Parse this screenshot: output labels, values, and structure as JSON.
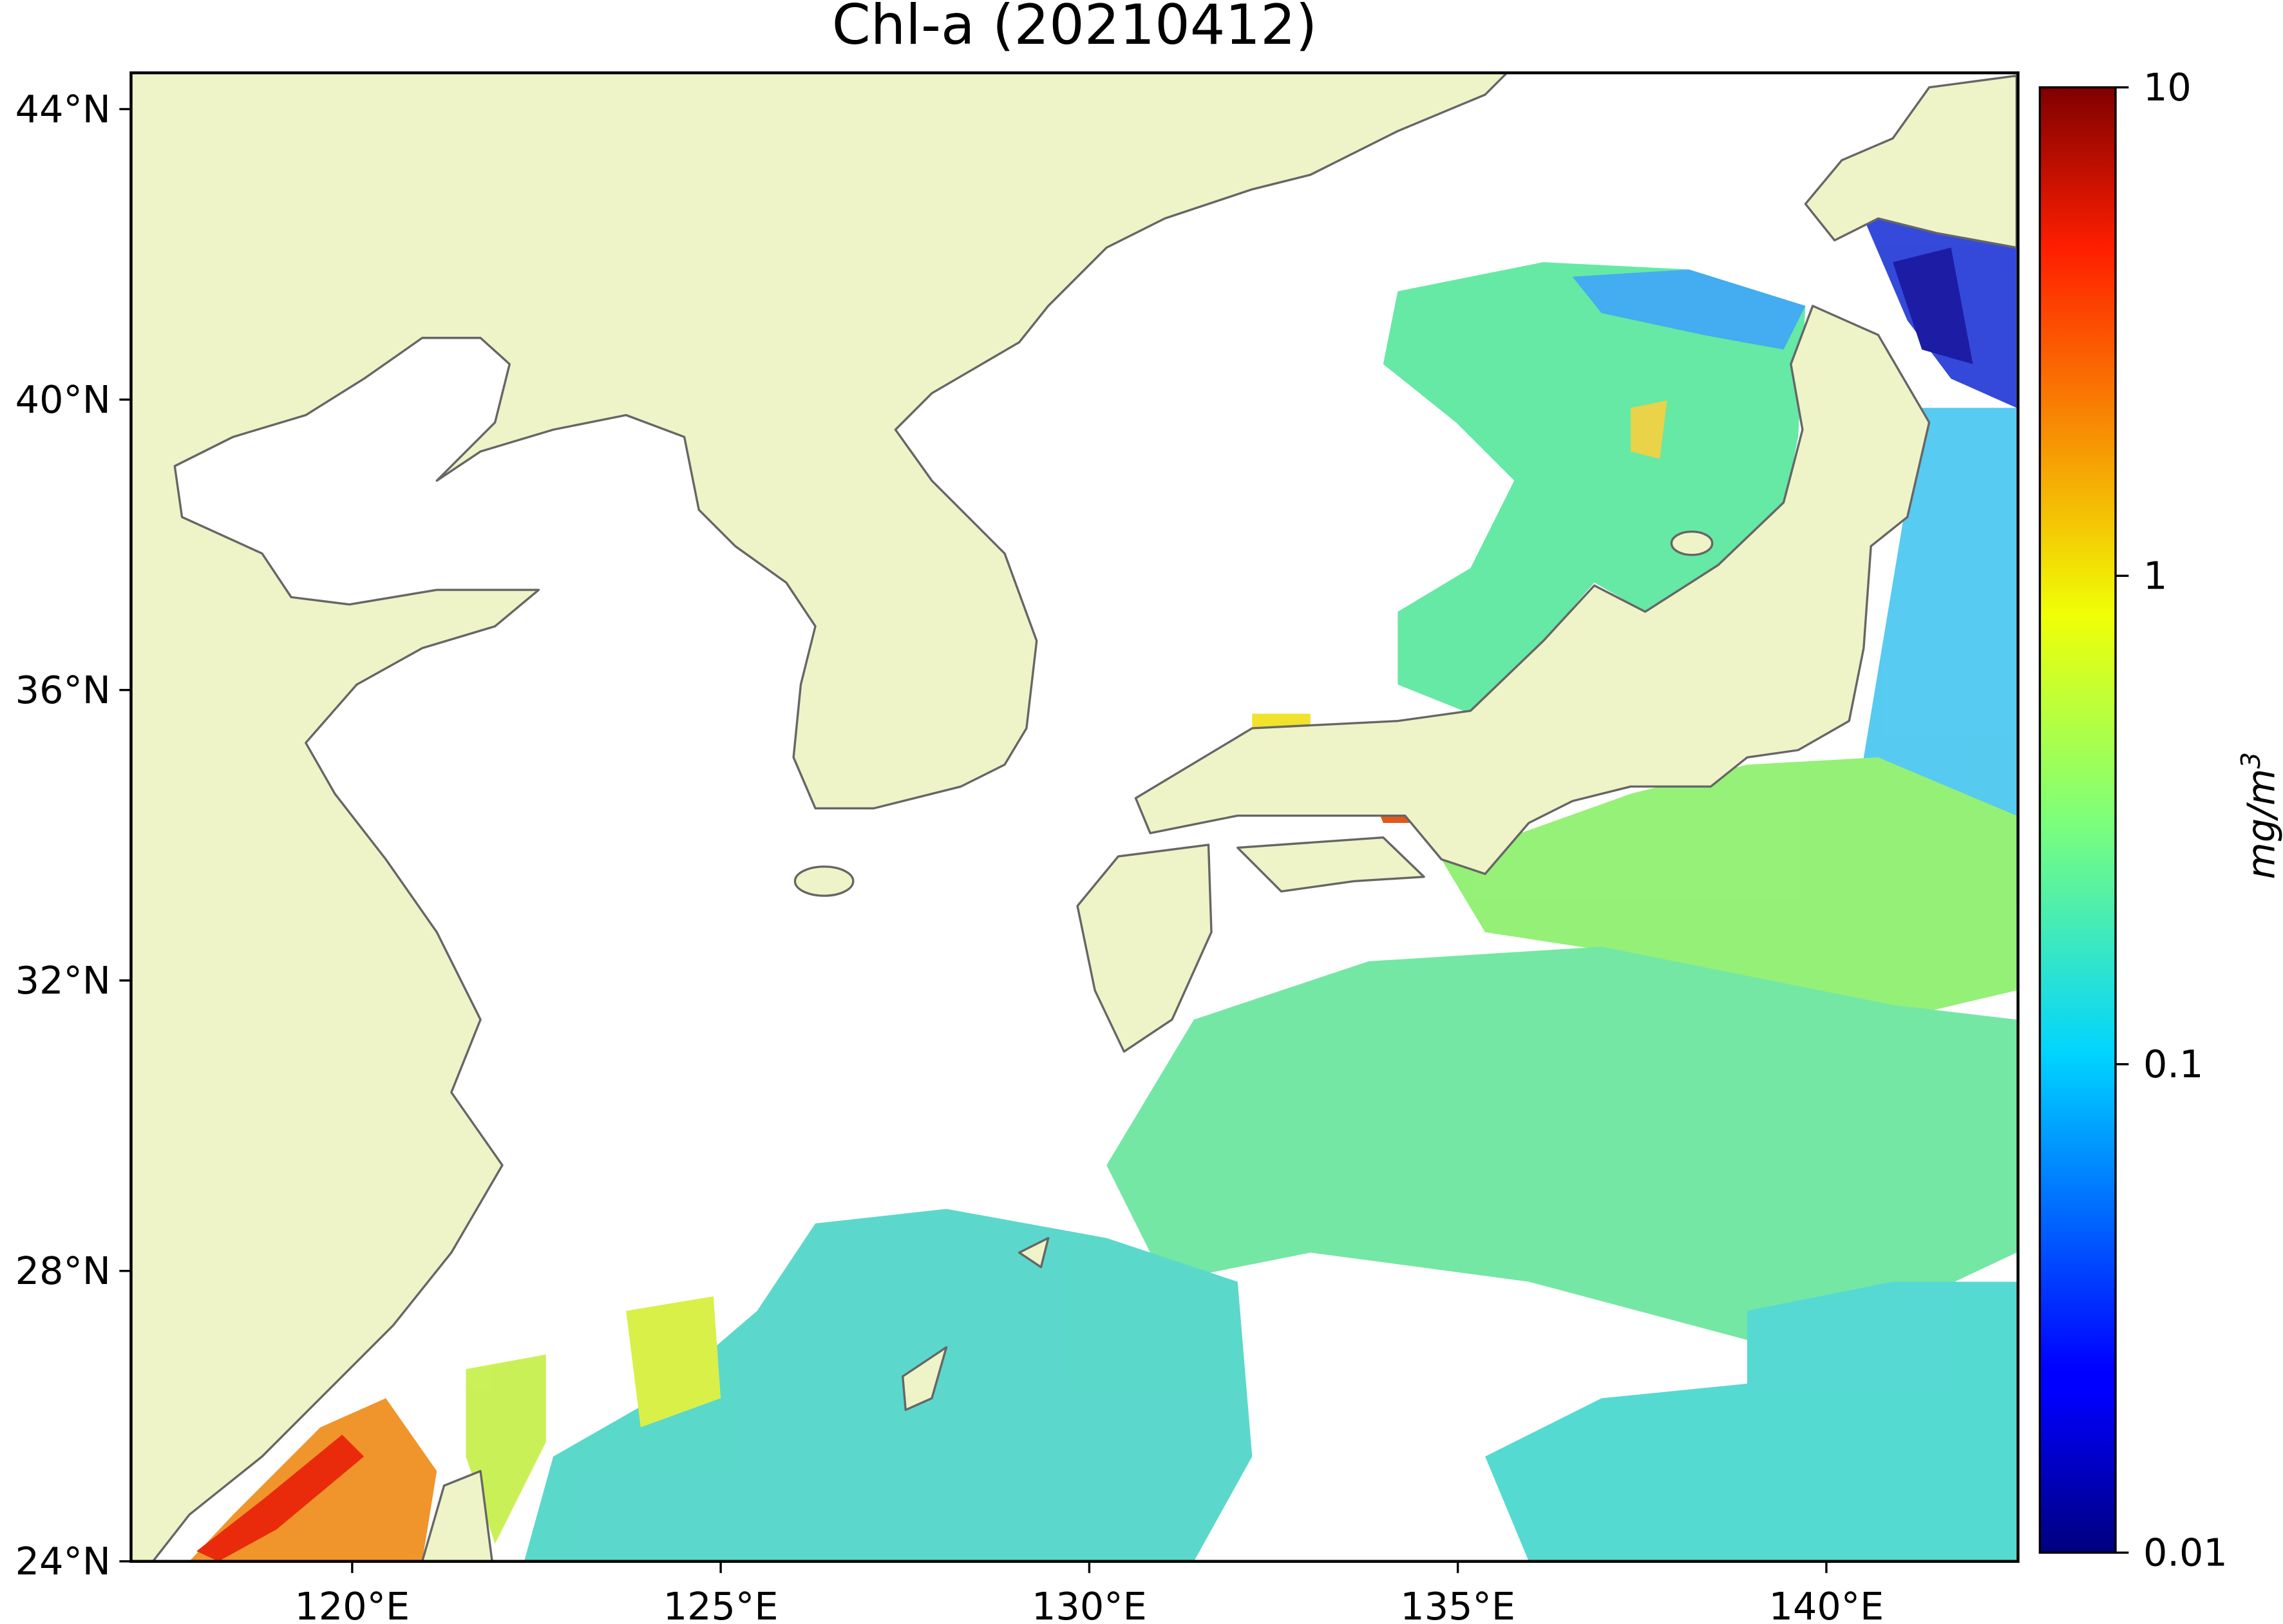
{
  "chart_data": {
    "type": "map",
    "title": "Chl-a (20210412)",
    "xlim": [
      117,
      142.6
    ],
    "ylim": [
      24,
      44.5
    ],
    "xticks": [
      {
        "value": 120,
        "label": "120°E"
      },
      {
        "value": 125,
        "label": "125°E"
      },
      {
        "value": 130,
        "label": "130°E"
      },
      {
        "value": 135,
        "label": "135°E"
      },
      {
        "value": 140,
        "label": "140°E"
      }
    ],
    "yticks": [
      {
        "value": 24,
        "label": "24°N"
      },
      {
        "value": 28,
        "label": "28°N"
      },
      {
        "value": 32,
        "label": "32°N"
      },
      {
        "value": 36,
        "label": "36°N"
      },
      {
        "value": 40,
        "label": "40°N"
      },
      {
        "value": 44,
        "label": "44°N"
      }
    ],
    "colorbar": {
      "lim": [
        0.01,
        10
      ],
      "log": true,
      "colormap": "jet",
      "ticks": [
        0.01,
        0.1,
        1,
        10
      ],
      "label": {
        "text": "mg/m",
        "superscript": "3"
      }
    }
  }
}
